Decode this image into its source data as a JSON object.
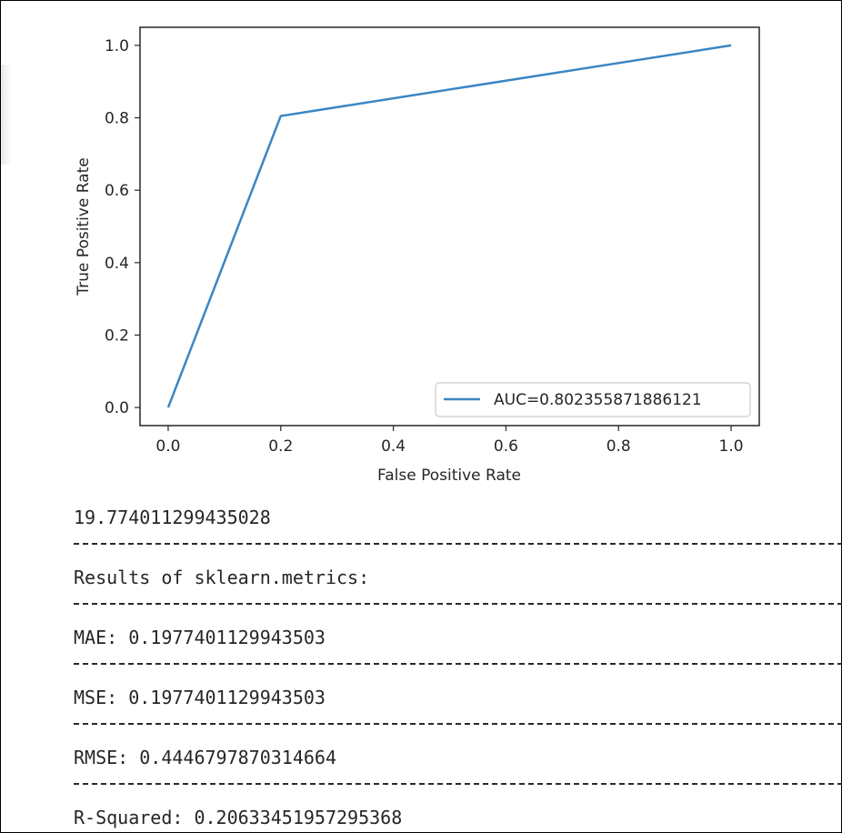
{
  "chart_data": {
    "type": "line",
    "xlabel": "False Positive Rate",
    "ylabel": "True Positive Rate",
    "xlim": [
      -0.05,
      1.05
    ],
    "ylim": [
      -0.05,
      1.05
    ],
    "xticks": [
      "0.0",
      "0.2",
      "0.4",
      "0.6",
      "0.8",
      "1.0"
    ],
    "yticks": [
      "0.0",
      "0.2",
      "0.4",
      "0.6",
      "0.8",
      "1.0"
    ],
    "grid": false,
    "legend_position": "lower-right",
    "series": [
      {
        "name": "AUC=0.802355871886121",
        "color": "#3a86c4",
        "x": [
          0.0,
          0.2,
          1.0
        ],
        "y": [
          0.0,
          0.805,
          1.0
        ]
      }
    ]
  },
  "output": {
    "value_line": "19.774011299435028",
    "header": "Results of sklearn.metrics:",
    "mae": "MAE: 0.1977401129943503",
    "mse": "MSE: 0.1977401129943503",
    "rmse": "RMSE: 0.4446797870314664",
    "r_squared": "R-Squared: 0.20633451957295368"
  }
}
